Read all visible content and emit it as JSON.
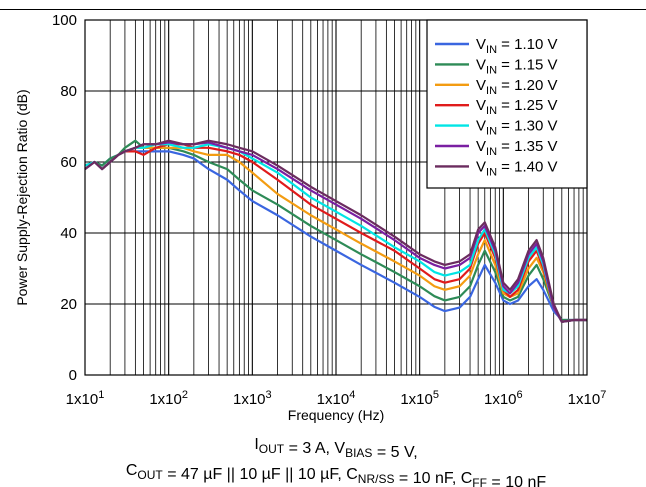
{
  "chart_data": {
    "type": "line",
    "x_scale": "log",
    "xlabel": "Frequency (Hz)",
    "ylabel": "Power Supply-Rejection Ratio (dB)",
    "xlim": [
      10,
      10000000
    ],
    "ylim": [
      0,
      100
    ],
    "grid": true,
    "legend_position": "top-right",
    "x_ticks": [
      {
        "value": 10,
        "mant": "1x10",
        "exp": "1"
      },
      {
        "value": 100,
        "mant": "1x10",
        "exp": "2"
      },
      {
        "value": 1000,
        "mant": "1x10",
        "exp": "3"
      },
      {
        "value": 10000,
        "mant": "1x10",
        "exp": "4"
      },
      {
        "value": 100000,
        "mant": "1x10",
        "exp": "5"
      },
      {
        "value": 1000000,
        "mant": "1x10",
        "exp": "6"
      },
      {
        "value": 10000000,
        "mant": "1x10",
        "exp": "7"
      }
    ],
    "y_ticks": [
      0,
      20,
      40,
      60,
      80,
      100
    ],
    "series": [
      {
        "name": "V_IN = 1.10 V",
        "label_base": "V",
        "label_sub": "IN",
        "label_rest": " = 1.10 V",
        "color": "#3a66e0",
        "x": [
          10,
          13,
          16,
          20,
          25,
          30,
          40,
          50,
          70,
          100,
          150,
          200,
          300,
          500,
          700,
          1000,
          2000,
          5000,
          10000,
          20000,
          50000,
          100000,
          150000,
          200000,
          300000,
          400000,
          500000,
          600000,
          800000,
          1000000,
          1200000,
          1500000,
          2000000,
          2500000,
          3000000,
          4000000,
          5000000,
          7000000,
          10000000
        ],
        "y": [
          59,
          60,
          59,
          61,
          62,
          63,
          63,
          63,
          63,
          63,
          62,
          61,
          58,
          55,
          52,
          49,
          45,
          39,
          35,
          31,
          26,
          22,
          19.2,
          18,
          19,
          22,
          27,
          31,
          26,
          21,
          20,
          21,
          25,
          27,
          24,
          18,
          15.5,
          15.5,
          15.5
        ]
      },
      {
        "name": "V_IN = 1.15 V",
        "label_base": "V",
        "label_sub": "IN",
        "label_rest": " = 1.15 V",
        "color": "#2e8b57",
        "x": [
          10,
          13,
          16,
          20,
          25,
          30,
          40,
          50,
          70,
          100,
          150,
          200,
          300,
          500,
          700,
          1000,
          2000,
          5000,
          10000,
          20000,
          50000,
          100000,
          150000,
          200000,
          300000,
          400000,
          500000,
          600000,
          800000,
          1000000,
          1200000,
          1500000,
          2000000,
          2500000,
          3000000,
          4000000,
          5000000,
          7000000,
          10000000
        ],
        "y": [
          59,
          60,
          59,
          61,
          62,
          64,
          66,
          64,
          64,
          64,
          63,
          62,
          60,
          58,
          55,
          52,
          48,
          42,
          38,
          34,
          29,
          25,
          22.2,
          21,
          22,
          25,
          31,
          35,
          29,
          22,
          21,
          22,
          28,
          31,
          27,
          19,
          15.5,
          15.5,
          15.5
        ]
      },
      {
        "name": "V_IN = 1.20 V",
        "label_base": "V",
        "label_sub": "IN",
        "label_rest": " = 1.20 V",
        "color": "#f39c12",
        "x": [
          10,
          13,
          16,
          20,
          25,
          30,
          40,
          50,
          70,
          100,
          150,
          200,
          300,
          500,
          700,
          1000,
          2000,
          5000,
          10000,
          20000,
          50000,
          100000,
          150000,
          200000,
          300000,
          400000,
          500000,
          600000,
          800000,
          1000000,
          1200000,
          1500000,
          2000000,
          2500000,
          3000000,
          4000000,
          5000000,
          7000000,
          10000000
        ],
        "y": [
          59,
          60,
          58,
          60,
          62,
          63,
          64,
          64,
          64,
          64,
          64,
          63,
          62,
          62,
          60,
          57,
          51,
          45,
          41,
          37,
          32,
          28,
          25,
          24,
          25,
          28,
          34,
          38,
          31,
          23,
          22,
          23,
          30,
          33,
          29,
          19,
          15,
          15.5,
          15.5
        ]
      },
      {
        "name": "V_IN = 1.25 V",
        "label_base": "V",
        "label_sub": "IN",
        "label_rest": " = 1.25 V",
        "color": "#e01b1b",
        "x": [
          10,
          13,
          16,
          20,
          25,
          30,
          40,
          50,
          70,
          100,
          150,
          200,
          300,
          500,
          700,
          1000,
          2000,
          5000,
          10000,
          20000,
          50000,
          100000,
          150000,
          200000,
          300000,
          400000,
          500000,
          600000,
          800000,
          1000000,
          1200000,
          1500000,
          2000000,
          2500000,
          3000000,
          4000000,
          5000000,
          7000000,
          10000000
        ],
        "y": [
          59,
          60,
          58,
          60,
          62,
          63,
          63,
          62,
          64,
          65,
          65,
          64,
          64,
          63,
          62,
          60,
          55,
          48,
          44,
          40,
          35,
          30,
          27,
          26,
          27,
          30,
          37,
          40,
          33,
          24,
          22,
          24,
          32,
          35,
          30,
          19,
          15,
          15.5,
          15.5
        ]
      },
      {
        "name": "V_IN = 1.30 V",
        "label_base": "V",
        "label_sub": "IN",
        "label_rest": " = 1.30 V",
        "color": "#00e5e5",
        "x": [
          10,
          13,
          16,
          20,
          25,
          30,
          40,
          50,
          70,
          100,
          150,
          200,
          300,
          500,
          700,
          1000,
          2000,
          5000,
          10000,
          20000,
          50000,
          100000,
          150000,
          200000,
          300000,
          400000,
          500000,
          600000,
          800000,
          1000000,
          1200000,
          1500000,
          2000000,
          2500000,
          3000000,
          4000000,
          5000000,
          7000000,
          10000000
        ],
        "y": [
          59,
          60,
          58,
          60,
          62,
          63,
          64,
          64,
          65,
          65,
          64,
          64,
          65,
          64,
          63,
          61,
          57,
          50,
          46,
          42,
          36,
          32,
          29,
          28,
          29,
          31,
          38,
          41,
          34,
          24,
          23,
          25,
          33,
          36,
          31,
          19,
          15,
          15.5,
          15.5
        ]
      },
      {
        "name": "V_IN = 1.35 V",
        "label_base": "V",
        "label_sub": "IN",
        "label_rest": " = 1.35 V",
        "color": "#7a1fa2",
        "x": [
          10,
          13,
          16,
          20,
          25,
          30,
          40,
          50,
          70,
          100,
          150,
          200,
          300,
          500,
          700,
          1000,
          2000,
          5000,
          10000,
          20000,
          50000,
          100000,
          150000,
          200000,
          300000,
          400000,
          500000,
          600000,
          800000,
          1000000,
          1200000,
          1500000,
          2000000,
          2500000,
          3000000,
          4000000,
          5000000,
          7000000,
          10000000
        ],
        "y": [
          58,
          60,
          58,
          60,
          62,
          63,
          64,
          65,
          65,
          65.5,
          65,
          65,
          65.5,
          64,
          63,
          62,
          58,
          52,
          48,
          44,
          38,
          33,
          31,
          30,
          31,
          33,
          40,
          42,
          35,
          25,
          23,
          26,
          34,
          37,
          32,
          19,
          15,
          15.5,
          15.5
        ]
      },
      {
        "name": "V_IN = 1.40 V",
        "label_base": "V",
        "label_sub": "IN",
        "label_rest": " = 1.40 V",
        "color": "#6b2c5f",
        "x": [
          10,
          13,
          16,
          20,
          25,
          30,
          40,
          50,
          70,
          100,
          150,
          200,
          300,
          500,
          700,
          1000,
          2000,
          5000,
          10000,
          20000,
          50000,
          100000,
          150000,
          200000,
          300000,
          400000,
          500000,
          600000,
          800000,
          1000000,
          1200000,
          1500000,
          2000000,
          2500000,
          3000000,
          4000000,
          5000000,
          7000000,
          10000000
        ],
        "y": [
          58,
          60,
          58,
          60,
          62,
          63,
          64,
          65,
          65,
          66,
          65,
          65,
          66,
          65,
          64,
          63,
          59,
          53,
          49,
          45,
          39,
          34,
          32,
          31,
          32,
          34,
          41,
          43,
          36,
          26,
          24,
          27,
          35,
          38,
          33,
          20,
          15,
          15.5,
          15.5
        ]
      }
    ]
  },
  "caption": {
    "line1": [
      {
        "t": "I"
      },
      {
        "t": "OUT",
        "sub": true
      },
      {
        "t": " = 3 A, V"
      },
      {
        "t": "BIAS",
        "sub": true
      },
      {
        "t": " = 5 V,"
      }
    ],
    "line2": [
      {
        "t": "C"
      },
      {
        "t": "OUT",
        "sub": true
      },
      {
        "t": " = 47 µF || 10 µF || 10 µF, C"
      },
      {
        "t": "NR/SS",
        "sub": true
      },
      {
        "t": " = 10 nF, C"
      },
      {
        "t": "FF",
        "sub": true
      },
      {
        "t": " = 10 nF"
      }
    ]
  }
}
